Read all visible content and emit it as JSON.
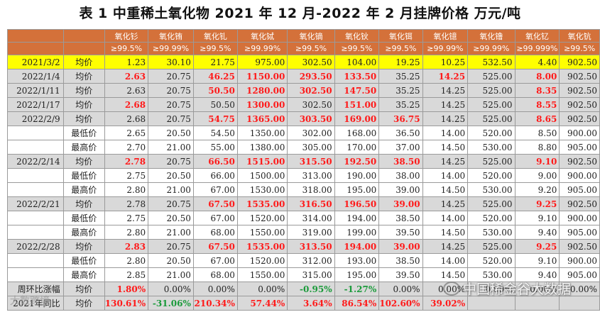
{
  "title": "表 1  中重稀土氧化物 2021 年 12 月-2022 年 2 月挂牌价格    万元/吨",
  "columns": [
    {
      "name": "氧化钐",
      "purity": "≥99.5%"
    },
    {
      "name": "氧化铕",
      "purity": "≥99.99%"
    },
    {
      "name": "氧化钆",
      "purity": "≥99.5%"
    },
    {
      "name": "氧化铽",
      "purity": "≥99.99%"
    },
    {
      "name": "氧化镝",
      "purity": "≥99.5%"
    },
    {
      "name": "氧化钬",
      "purity": "≥99.5%"
    },
    {
      "name": "氧化铒",
      "purity": "≥99.5%"
    },
    {
      "name": "氧化镱",
      "purity": "≥99.99%"
    },
    {
      "name": "氧化镥",
      "purity": "≥99.99%"
    },
    {
      "name": "氧化钇",
      "purity": "≥99.999%"
    },
    {
      "name": "氧化钪",
      "purity": "≥99.5%"
    }
  ],
  "rows": [
    {
      "date": "2021/3/2",
      "type": "均价",
      "style": "yellow",
      "values": [
        "1.23",
        "30.10",
        "21.75",
        "975.00",
        "302.50",
        "104.00",
        "19.25",
        "10.25",
        "532.50",
        "4.40",
        "902.50"
      ],
      "colors": [
        "",
        "",
        "",
        "",
        "",
        "",
        "",
        "",
        "",
        "",
        ""
      ]
    },
    {
      "date": "2022/1/4",
      "type": "均价",
      "style": "grey",
      "values": [
        "2.63",
        "20.75",
        "46.25",
        "1150.00",
        "293.50",
        "133.50",
        "35.25",
        "14.25",
        "525.00",
        "8.00",
        "902.50"
      ],
      "colors": [
        "red",
        "",
        "red",
        "red",
        "red",
        "red",
        "",
        "red",
        "",
        "red",
        ""
      ]
    },
    {
      "date": "2022/1/11",
      "type": "均价",
      "style": "grey",
      "values": [
        "2.63",
        "20.75",
        "50.50",
        "1280.00",
        "302.50",
        "147.50",
        "35.25",
        "14.25",
        "525.00",
        "8.35",
        "902.50"
      ],
      "colors": [
        "",
        "",
        "red",
        "red",
        "red",
        "red",
        "",
        "",
        "",
        "red",
        ""
      ]
    },
    {
      "date": "2022/1/17",
      "type": "均价",
      "style": "grey",
      "values": [
        "2.68",
        "20.75",
        "50.50",
        "1300.00",
        "302.50",
        "151.00",
        "35.25",
        "14.25",
        "525.00",
        "8.55",
        "902.50"
      ],
      "colors": [
        "red",
        "",
        "",
        "red",
        "",
        "red",
        "",
        "",
        "",
        "red",
        ""
      ]
    },
    {
      "date": "2022/2/9",
      "type": "均价",
      "style": "grey",
      "values": [
        "2.68",
        "20.75",
        "54.75",
        "1365.00",
        "303.50",
        "169.00",
        "36.75",
        "14.25",
        "525.00",
        "8.65",
        "902.50"
      ],
      "colors": [
        "",
        "",
        "red",
        "red",
        "red",
        "red",
        "red",
        "",
        "",
        "red",
        ""
      ]
    },
    {
      "date": "",
      "type": "最低价",
      "style": "white",
      "values": [
        "2.65",
        "20.50",
        "54.50",
        "1350.00",
        "302.00",
        "168.00",
        "36.50",
        "14.00",
        "520.00",
        "8.50",
        "900.00"
      ],
      "colors": [
        "",
        "",
        "",
        "",
        "",
        "",
        "",
        "",
        "",
        "",
        ""
      ]
    },
    {
      "date": "",
      "type": "最高价",
      "style": "white",
      "values": [
        "2.70",
        "21.00",
        "55.00",
        "1380.00",
        "305.00",
        "170.00",
        "37.00",
        "14.50",
        "530.00",
        "8.80",
        "905.00"
      ],
      "colors": [
        "",
        "",
        "",
        "",
        "",
        "",
        "",
        "",
        "",
        "",
        ""
      ]
    },
    {
      "date": "2022/2/14",
      "type": "均价",
      "style": "grey",
      "values": [
        "2.78",
        "20.75",
        "66.50",
        "1515.00",
        "315.50",
        "192.50",
        "38.50",
        "14.25",
        "525.00",
        "9.10",
        "902.50"
      ],
      "colors": [
        "red",
        "",
        "red",
        "red",
        "red",
        "red",
        "red",
        "",
        "",
        "red",
        ""
      ]
    },
    {
      "date": "",
      "type": "最低价",
      "style": "white",
      "values": [
        "2.75",
        "20.50",
        "66.00",
        "1500.00",
        "313.00",
        "190.00",
        "38.00",
        "14.00",
        "520.00",
        "9.00",
        "900.00"
      ],
      "colors": [
        "",
        "",
        "",
        "",
        "",
        "",
        "",
        "",
        "",
        "",
        ""
      ]
    },
    {
      "date": "",
      "type": "最高价",
      "style": "white",
      "values": [
        "2.80",
        "21.00",
        "67.00",
        "1530.00",
        "318.00",
        "195.00",
        "39.00",
        "14.50",
        "530.00",
        "9.20",
        "905.00"
      ],
      "colors": [
        "",
        "",
        "",
        "",
        "",
        "",
        "",
        "",
        "",
        "",
        ""
      ]
    },
    {
      "date": "2022/2/21",
      "type": "均价",
      "style": "grey",
      "values": [
        "2.78",
        "20.75",
        "67.50",
        "1535.00",
        "316.50",
        "196.50",
        "39.00",
        "14.25",
        "525.00",
        "9.25",
        "902.50"
      ],
      "colors": [
        "",
        "",
        "red",
        "red",
        "red",
        "red",
        "red",
        "",
        "",
        "red",
        ""
      ]
    },
    {
      "date": "",
      "type": "最低价",
      "style": "white",
      "values": [
        "2.75",
        "20.50",
        "67.00",
        "1520.00",
        "314.00",
        "194.00",
        "38.50",
        "14.00",
        "520.00",
        "9.10",
        "900.00"
      ],
      "colors": [
        "",
        "",
        "",
        "",
        "",
        "",
        "",
        "",
        "",
        "",
        ""
      ]
    },
    {
      "date": "",
      "type": "最高价",
      "style": "white",
      "values": [
        "2.80",
        "21.00",
        "68.00",
        "1550.00",
        "319.00",
        "199.00",
        "39.50",
        "14.50",
        "530.00",
        "9.40",
        "905.00"
      ],
      "colors": [
        "",
        "",
        "",
        "",
        "",
        "",
        "",
        "",
        "",
        "",
        ""
      ]
    },
    {
      "date": "2022/2/28",
      "type": "均价",
      "style": "grey",
      "values": [
        "2.83",
        "20.75",
        "67.50",
        "1535.00",
        "313.50",
        "194.00",
        "39.00",
        "14.25",
        "525.00",
        "9.25",
        "902.50"
      ],
      "colors": [
        "red",
        "",
        "red",
        "red",
        "red",
        "red",
        "red",
        "",
        "",
        "red",
        ""
      ]
    },
    {
      "date": "",
      "type": "最低价",
      "style": "white",
      "values": [
        "2.80",
        "20.50",
        "67.00",
        "1520.00",
        "312.00",
        "193.00",
        "38.50",
        "14.00",
        "520.00",
        "9.10",
        "900.00"
      ],
      "colors": [
        "",
        "",
        "",
        "",
        "",
        "",
        "",
        "",
        "",
        "",
        ""
      ]
    },
    {
      "date": "",
      "type": "最高价",
      "style": "white",
      "values": [
        "2.85",
        "21.00",
        "68.00",
        "1550.00",
        "315.00",
        "195.00",
        "39.50",
        "14.50",
        "530.00",
        "9.40",
        "905.00"
      ],
      "colors": [
        "",
        "",
        "",
        "",
        "",
        "",
        "",
        "",
        "",
        "",
        ""
      ]
    },
    {
      "date": "周环比涨幅",
      "type": "均价",
      "style": "grey",
      "values": [
        "1.80%",
        "0.00%",
        "0.00%",
        "0.00%",
        "-0.95%",
        "-1.27%",
        "0.00%",
        "0.00%",
        "0.00%",
        "0.00%",
        "0.00%"
      ],
      "colors": [
        "red",
        "",
        "",
        "",
        "green",
        "green",
        "",
        "",
        "",
        "",
        ""
      ]
    },
    {
      "date": "2021年同比",
      "type": "均价",
      "style": "grey",
      "values": [
        "130.61%",
        "-31.06%",
        "210.34%",
        "57.44%",
        "3.64%",
        "86.54%",
        "102.60%",
        "39.02%",
        "",
        "",
        ""
      ],
      "colors": [
        "red",
        "green",
        "red",
        "red",
        "red",
        "red",
        "red",
        "red",
        "",
        "",
        ""
      ]
    }
  ],
  "watermarks": {
    "left": "大数跨境",
    "right": "中国稀金谷大数据"
  },
  "colors": {
    "header_bg": "#d4713a",
    "highlight_row": "#ffff00",
    "grey_row": "#d9d9d9",
    "up": "#ff1a1a",
    "down": "#1a9a3a"
  }
}
